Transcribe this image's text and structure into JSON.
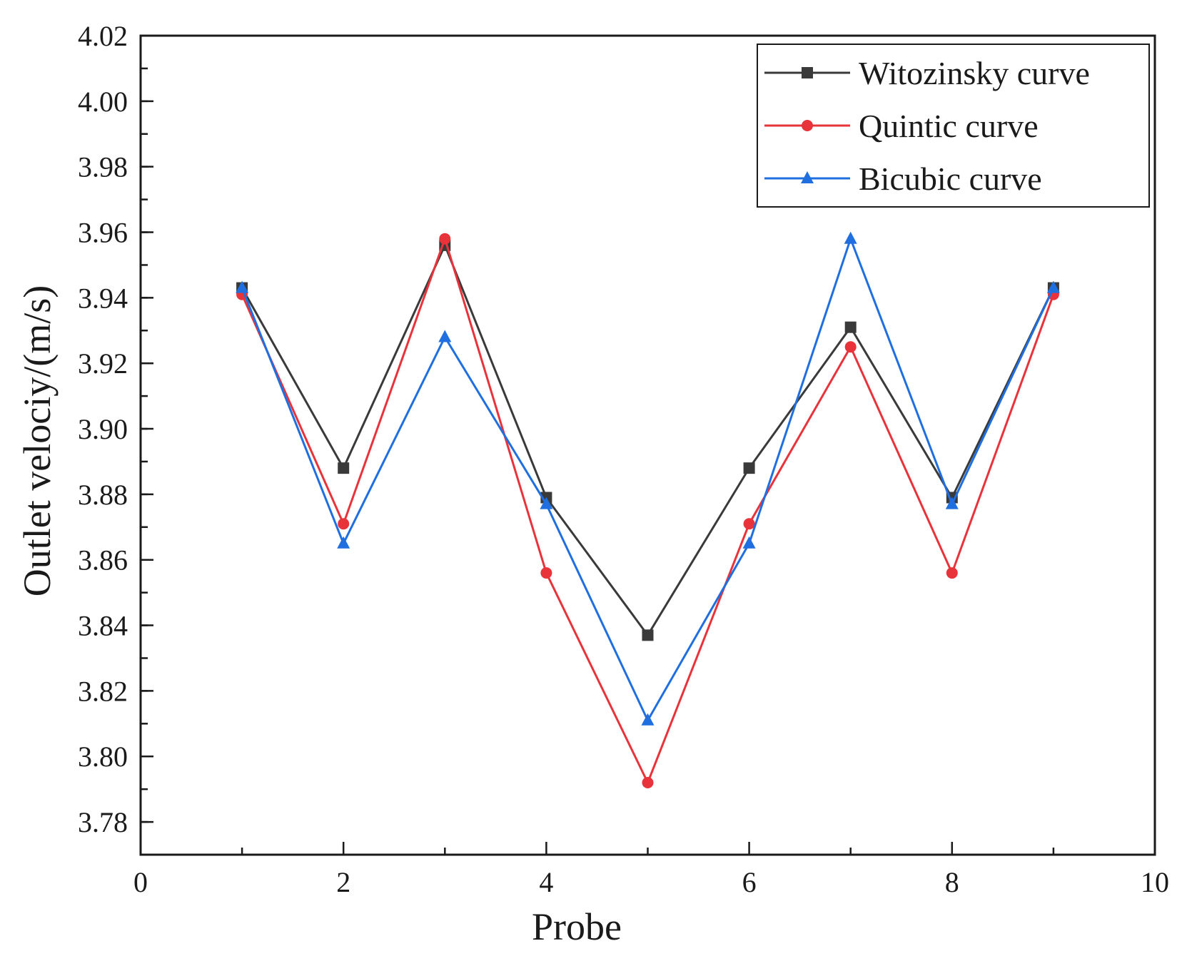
{
  "chart_data": {
    "type": "line",
    "xlabel": "Probe",
    "ylabel": "Outlet velociy/(m/s)",
    "xlim": [
      0,
      10
    ],
    "ylim": [
      3.77,
      4.02
    ],
    "xticks": [
      "0",
      "2",
      "4",
      "6",
      "8",
      "10"
    ],
    "yticks": [
      "3.78",
      "3.80",
      "3.82",
      "3.84",
      "3.86",
      "3.88",
      "3.90",
      "3.92",
      "3.94",
      "3.96",
      "3.98",
      "4.00",
      "4.02"
    ],
    "xtick_values": [
      0,
      2,
      4,
      6,
      8,
      10
    ],
    "ytick_values": [
      3.78,
      3.8,
      3.82,
      3.84,
      3.86,
      3.88,
      3.9,
      3.92,
      3.94,
      3.96,
      3.98,
      4.0,
      4.02
    ],
    "grid": false,
    "legend_position": "top-right",
    "x": [
      1,
      2,
      3,
      4,
      5,
      6,
      7,
      8,
      9
    ],
    "series": [
      {
        "name": "Witozinsky curve",
        "color": "#3a3a3a",
        "marker": "square",
        "values": [
          3.943,
          3.888,
          3.956,
          3.879,
          3.837,
          3.888,
          3.931,
          3.879,
          3.943
        ]
      },
      {
        "name": "Quintic curve",
        "color": "#e8333a",
        "marker": "circle",
        "values": [
          3.941,
          3.871,
          3.958,
          3.856,
          3.792,
          3.871,
          3.925,
          3.856,
          3.941
        ]
      },
      {
        "name": "Bicubic curve",
        "color": "#1f6fe0",
        "marker": "triangle",
        "values": [
          3.943,
          3.865,
          3.928,
          3.877,
          3.811,
          3.865,
          3.958,
          3.877,
          3.943
        ]
      }
    ]
  }
}
